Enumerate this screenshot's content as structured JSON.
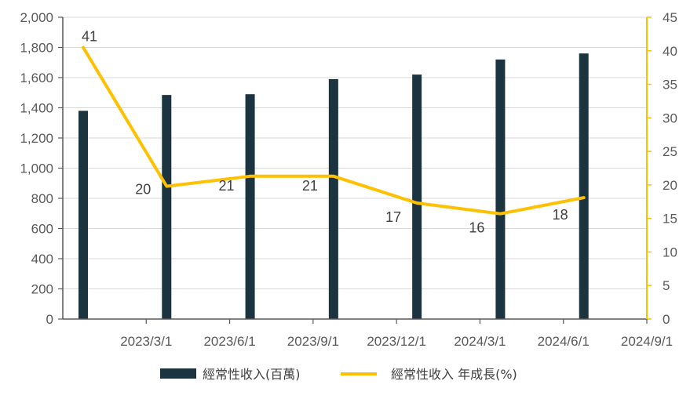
{
  "chart_data": {
    "type": "bar+line",
    "categories": [
      "2023/3/1",
      "2023/6/1",
      "2023/9/1",
      "2023/12/1",
      "2024/3/1",
      "2024/6/1",
      "2024/9/1"
    ],
    "series": [
      {
        "name": "經常性收入(百萬)",
        "type": "bar",
        "axis": "left",
        "color": "#1b3440",
        "values": [
          1380,
          1485,
          1490,
          1590,
          1620,
          1720,
          1760
        ]
      },
      {
        "name": "經常性收入 年成長(%)",
        "type": "line",
        "axis": "right",
        "color": "#ffc000",
        "values": [
          40.5,
          19.8,
          21.3,
          21.3,
          17.3,
          15.7,
          18.1
        ],
        "labels": [
          "41",
          "20",
          "21",
          "21",
          "17",
          "16",
          "18"
        ]
      }
    ],
    "left_axis": {
      "min": 0,
      "max": 2000,
      "step": 200,
      "tick_labels": [
        "0",
        "200",
        "400",
        "600",
        "800",
        "1,000",
        "1,200",
        "1,400",
        "1,600",
        "1,800",
        "2,000"
      ]
    },
    "right_axis": {
      "min": 0,
      "max": 45,
      "step": 5,
      "tick_labels": [
        "0",
        "5",
        "10",
        "15",
        "20",
        "25",
        "30",
        "35",
        "40",
        "45"
      ],
      "color": "#ffc000"
    },
    "grid": true,
    "legend": "bottom"
  }
}
